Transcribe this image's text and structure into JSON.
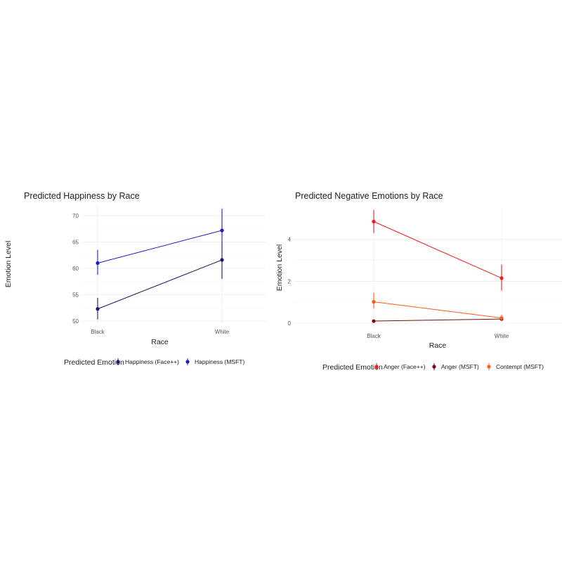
{
  "chart_data": [
    {
      "type": "line",
      "title": "Predicted Happiness by Race",
      "xlabel": "Race",
      "ylabel": "Emotion Level",
      "categories": [
        "Black",
        "White"
      ],
      "ylim": [
        49.6,
        72.0
      ],
      "yticks": [
        50,
        55,
        60,
        65,
        70
      ],
      "grid": true,
      "legend_title": "Predicted Emotion",
      "legend_position": "bottom",
      "series": [
        {
          "name": "Happiness (Face++)",
          "color": "#191970",
          "values": [
            52.3,
            61.6
          ],
          "lower": [
            50.3,
            58.0
          ],
          "upper": [
            54.4,
            65.2
          ]
        },
        {
          "name": "Happiness (MSFT)",
          "color": "#1c1ccc",
          "values": [
            61.0,
            67.2
          ],
          "lower": [
            58.8,
            63.1
          ],
          "upper": [
            63.5,
            71.3
          ]
        }
      ]
    },
    {
      "type": "line",
      "title": "Predicted Negative Emotions by Race",
      "xlabel": "Race",
      "ylabel": "Emotion Level",
      "categories": [
        "Black",
        "White"
      ],
      "ylim": [
        -0.2,
        5.5
      ],
      "yticks": [
        0,
        2,
        4
      ],
      "grid": true,
      "legend_title": "Predicted Emotion",
      "legend_position": "bottom",
      "series": [
        {
          "name": "Anger (Face++)",
          "color": "#ee1c1c",
          "values": [
            4.85,
            2.15
          ],
          "lower": [
            4.3,
            1.55
          ],
          "upper": [
            5.4,
            2.8
          ]
        },
        {
          "name": "Anger (MSFT)",
          "color": "#7a0a0a",
          "values": [
            0.1,
            0.2
          ],
          "lower": [
            0.05,
            0.1
          ],
          "upper": [
            0.15,
            0.3
          ]
        },
        {
          "name": "Contempt (MSFT)",
          "color": "#ff5a1a",
          "values": [
            1.02,
            0.25
          ],
          "lower": [
            0.7,
            0.1
          ],
          "upper": [
            1.45,
            0.4
          ]
        }
      ]
    }
  ]
}
